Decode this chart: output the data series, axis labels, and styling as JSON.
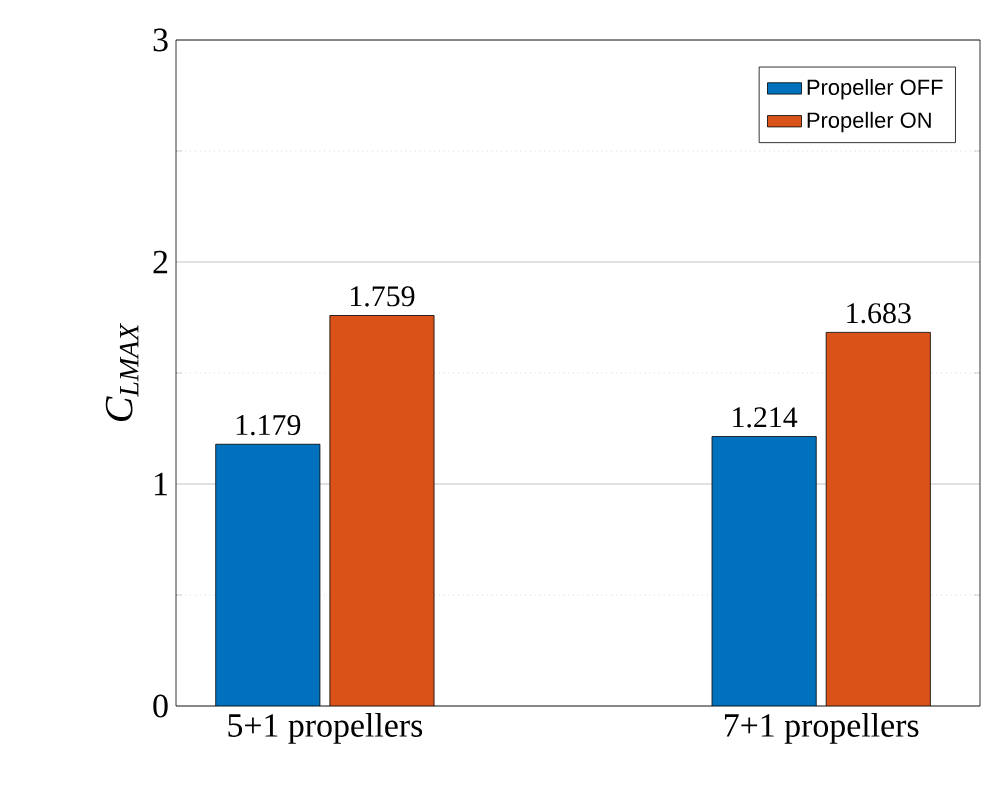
{
  "chart_data": {
    "type": "bar",
    "ylabel": "C$_{LMAX}$",
    "categories": [
      "5+1 propellers",
      "7+1 propellers"
    ],
    "series": [
      {
        "name": "Propeller OFF",
        "color": "#0072bd",
        "values": [
          1.179,
          1.214
        ]
      },
      {
        "name": "Propeller ON",
        "color": "#d95319",
        "values": [
          1.759,
          1.683
        ]
      }
    ],
    "ylim": [
      0,
      3
    ],
    "yticks": [
      0,
      1,
      2,
      3
    ],
    "grid": "y",
    "legend": "top right",
    "data_labels": true
  }
}
